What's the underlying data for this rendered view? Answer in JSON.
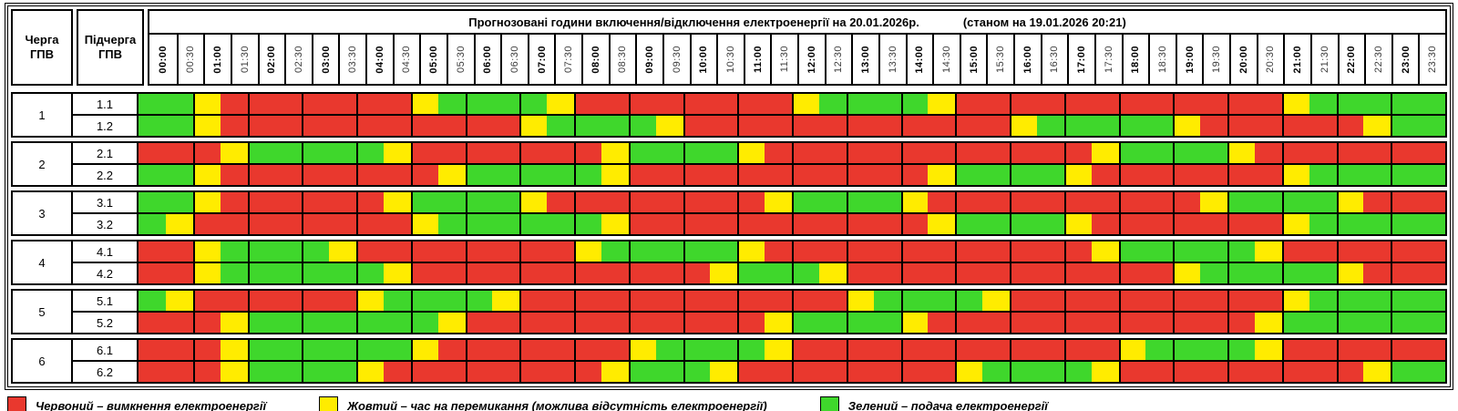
{
  "header": {
    "queue_col_label": "Черга\nГПВ",
    "subqueue_col_label": "Підчерга\nГПВ",
    "title": "Прогнозовані години включення/відключення електроенергії на 20.01.2026р.",
    "status_note": "(станом на 19.01.2026 20:21)"
  },
  "colors": {
    "R": "#e9382e",
    "Y": "#ffec00",
    "G": "#3fd72c"
  },
  "chart_data": {
    "type": "heatmap",
    "title": "Прогнозовані години включення/відключення електроенергії на 20.01.2026р.",
    "x": [
      "00:00",
      "00:30",
      "01:00",
      "01:30",
      "02:00",
      "02:30",
      "03:00",
      "03:30",
      "04:00",
      "04:30",
      "05:00",
      "05:30",
      "06:00",
      "06:30",
      "07:00",
      "07:30",
      "08:00",
      "08:30",
      "09:00",
      "09:30",
      "10:00",
      "10:30",
      "11:00",
      "11:30",
      "12:00",
      "12:30",
      "13:00",
      "13:30",
      "14:00",
      "14:30",
      "15:00",
      "15:30",
      "16:00",
      "16:30",
      "17:00",
      "17:30",
      "18:00",
      "18:30",
      "19:00",
      "19:30",
      "20:00",
      "20:30",
      "21:00",
      "21:30",
      "22:00",
      "22:30",
      "23:00",
      "23:30"
    ],
    "cell_states": {
      "R": "вимкнення електроенергії",
      "Y": "час на перемикання (можлива відсутність електроенергії)",
      "G": "подача електроенергії"
    },
    "rows": [
      {
        "queue": "1",
        "subqueue": "1.1",
        "values": "GGYRRRRRRRYGGGGYRRRRRRRRYGGGGYRRRRRRRRRRRRYGGGGG"
      },
      {
        "queue": "1",
        "subqueue": "1.2",
        "values": "GGYRRRRRRRRRRRYGGGGYRRRRRRRRRRRRYGGGGGYRRRRRRYGG"
      },
      {
        "queue": "2",
        "subqueue": "2.1",
        "values": "RRRYGGGGGYRRRRRRRYGGGGYRRRRRRRRRRRRYGGGGYRRRRRRR"
      },
      {
        "queue": "2",
        "subqueue": "2.2",
        "values": "GGYRRRRRRRRYGGGGGYRRRRRRRRRRRYGGGGYRRRRRRRYGGGGG"
      },
      {
        "queue": "3",
        "subqueue": "3.1",
        "values": "GGYRRRRRRYGGGGYRRRRRRRRYGGGGYRRRRRRRRRRYGGGGYRRR"
      },
      {
        "queue": "3",
        "subqueue": "3.2",
        "values": "GYRRRRRRRRYGGGGGGYRRRRRRRRRRRYGGGGYRRRRRRRYGGGGG"
      },
      {
        "queue": "4",
        "subqueue": "4.1",
        "values": "RRYGGGGYRRRRRRRRYGGGGGYRRRRRRRRRRRRYGGGGGYRRRRRR"
      },
      {
        "queue": "4",
        "subqueue": "4.2",
        "values": "RRYGGGGGGYRRRRRRRRRRRYGGGYRRRRRRRRRRRRYGGGGGYRRR"
      },
      {
        "queue": "5",
        "subqueue": "5.1",
        "values": "GYRRRRRRYGGGGYRRRRRRRRRRRRYGGGGYRRRRRRRRRRYGGGGG"
      },
      {
        "queue": "5",
        "subqueue": "5.2",
        "values": "RRRYGGGGGGGYRRRRRRRRRRRYGGGGYRRRRRRRRRRRRYGGGGGG"
      },
      {
        "queue": "6",
        "subqueue": "6.1",
        "values": "RRRYGGGGGGYRRRRRRRYGGGGYRRRRRRRRRRRRYGGGGYRRRRRR"
      },
      {
        "queue": "6",
        "subqueue": "6.2",
        "values": "RRRYGGGGYRRRRRRRRYGGGYRRRRRRRRYGGGGYRRRRRRRRRYGG"
      }
    ]
  },
  "legend": {
    "items": [
      {
        "state": "R",
        "label": "Червоний – вимкнення електроенергії"
      },
      {
        "state": "Y",
        "label": "Жовтий – час на перемикання (можлива відсутність електроенергії)"
      },
      {
        "state": "G",
        "label": "Зелений – подача електроенергії"
      }
    ]
  }
}
